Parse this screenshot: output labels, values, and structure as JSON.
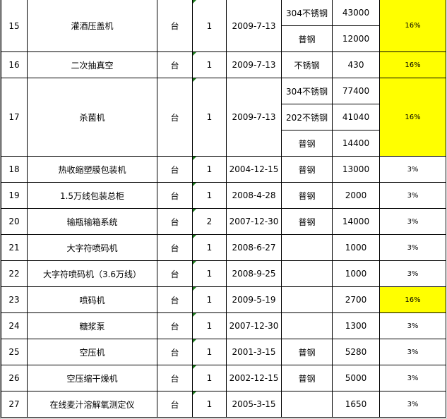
{
  "highlight_color": "#ffff00",
  "rows": [
    {
      "no": "15",
      "name": "灌酒压盖机",
      "unit": "台",
      "qty": "1",
      "date": "2009-7-13",
      "sub": [
        {
          "material": "304不锈钢",
          "value": "43000"
        },
        {
          "material": "普钢",
          "value": "12000"
        }
      ],
      "rate": "16%",
      "highlight": true
    },
    {
      "no": "16",
      "name": "二次抽真空",
      "unit": "台",
      "qty": "1",
      "date": "2009-7-13",
      "sub": [
        {
          "material": "不锈钢",
          "value": "430"
        }
      ],
      "rate": "16%",
      "highlight": true
    },
    {
      "no": "17",
      "name": "杀菌机",
      "unit": "台",
      "qty": "1",
      "date": "2009-7-13",
      "sub": [
        {
          "material": "304不锈钢",
          "value": "77400"
        },
        {
          "material": "202不锈钢",
          "value": "41040"
        },
        {
          "material": "普钢",
          "value": "14400"
        }
      ],
      "rate": "16%",
      "highlight": true
    },
    {
      "no": "18",
      "name": "热收缩塑膜包装机",
      "unit": "台",
      "qty": "1",
      "date": "2004-12-15",
      "sub": [
        {
          "material": "普钢",
          "value": "13000"
        }
      ],
      "rate": "3%",
      "highlight": false
    },
    {
      "no": "19",
      "name": "1.5万线包装总柜",
      "unit": "台",
      "qty": "1",
      "date": "2008-4-28",
      "sub": [
        {
          "material": "普钢",
          "value": "2000"
        }
      ],
      "rate": "3%",
      "highlight": false
    },
    {
      "no": "20",
      "name": "输瓶输箱系统",
      "unit": "台",
      "qty": "2",
      "date": "2007-12-30",
      "sub": [
        {
          "material": "普钢",
          "value": "14000"
        }
      ],
      "rate": "3%",
      "highlight": false
    },
    {
      "no": "21",
      "name": "大字符喷码机",
      "unit": "台",
      "qty": "1",
      "date": "2008-6-27",
      "sub": [
        {
          "material": "",
          "value": "1000"
        }
      ],
      "rate": "3%",
      "highlight": false
    },
    {
      "no": "22",
      "name": "大字符喷码机（3.6万线）",
      "unit": "台",
      "qty": "1",
      "date": "2008-9-25",
      "sub": [
        {
          "material": "",
          "value": "1000"
        }
      ],
      "rate": "3%",
      "highlight": false
    },
    {
      "no": "23",
      "name": "喷码机",
      "unit": "台",
      "qty": "1",
      "date": "2009-5-19",
      "sub": [
        {
          "material": "",
          "value": "2700"
        }
      ],
      "rate": "16%",
      "highlight": true
    },
    {
      "no": "24",
      "name": "糖浆泵",
      "unit": "台",
      "qty": "1",
      "date": "2007-12-30",
      "sub": [
        {
          "material": "",
          "value": "1300"
        }
      ],
      "rate": "3%",
      "highlight": false
    },
    {
      "no": "25",
      "name": "空压机",
      "unit": "台",
      "qty": "1",
      "date": "2001-3-15",
      "sub": [
        {
          "material": "普钢",
          "value": "5280"
        }
      ],
      "rate": "3%",
      "highlight": false
    },
    {
      "no": "26",
      "name": "空压缩干燥机",
      "unit": "台",
      "qty": "1",
      "date": "2002-12-15",
      "sub": [
        {
          "material": "普钢",
          "value": "5000"
        }
      ],
      "rate": "3%",
      "highlight": false
    },
    {
      "no": "27",
      "name": "在线麦汁溶解氧测定仪",
      "unit": "台",
      "qty": "1",
      "date": "2005-3-15",
      "sub": [
        {
          "material": "",
          "value": "1650"
        }
      ],
      "rate": "3%",
      "highlight": false
    }
  ]
}
